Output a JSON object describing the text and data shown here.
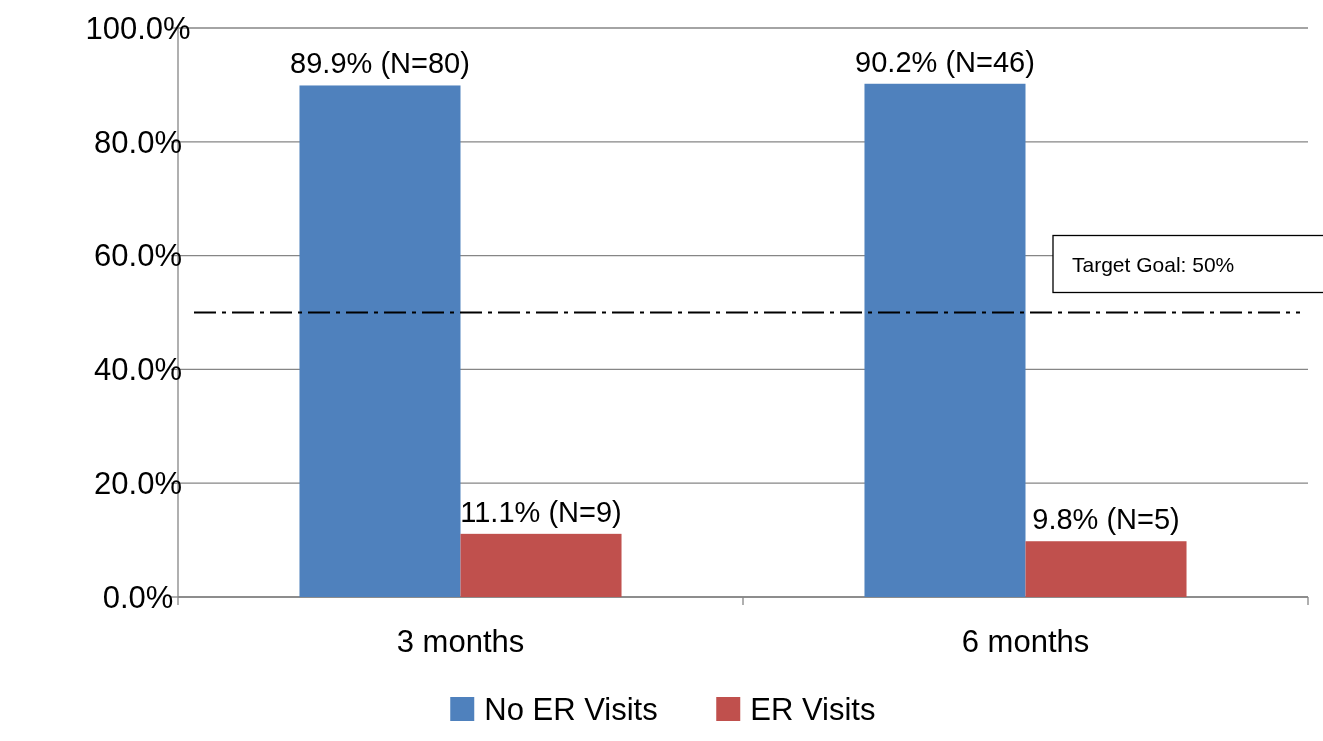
{
  "chart_data": {
    "type": "bar",
    "categories": [
      "3 months",
      "6 months"
    ],
    "series": [
      {
        "name": "No ER Visits",
        "color": "#4f81bd",
        "values": [
          89.9,
          90.2
        ],
        "value_labels": [
          "89.9% (N=80)",
          "90.2% (N=46)"
        ]
      },
      {
        "name": "ER Visits",
        "color": "#c0504d",
        "values": [
          11.1,
          9.8
        ],
        "value_labels": [
          "11.1% (N=9)",
          "9.8% (N=5)"
        ]
      }
    ],
    "ylim": [
      0,
      100
    ],
    "yticks": [
      {
        "value": 0,
        "label": "0.0%"
      },
      {
        "value": 20,
        "label": "20.0%"
      },
      {
        "value": 40,
        "label": "40.0%"
      },
      {
        "value": 60,
        "label": "60.0%"
      },
      {
        "value": 80,
        "label": "80.0%"
      },
      {
        "value": 100,
        "label": "100.0%"
      }
    ],
    "grid": "y",
    "legend": "bottom",
    "ref_lines": [
      {
        "axis": "y",
        "value": 50,
        "label": "Target Goal: 50%",
        "color": "#000000",
        "line_style": "dashed"
      }
    ]
  }
}
